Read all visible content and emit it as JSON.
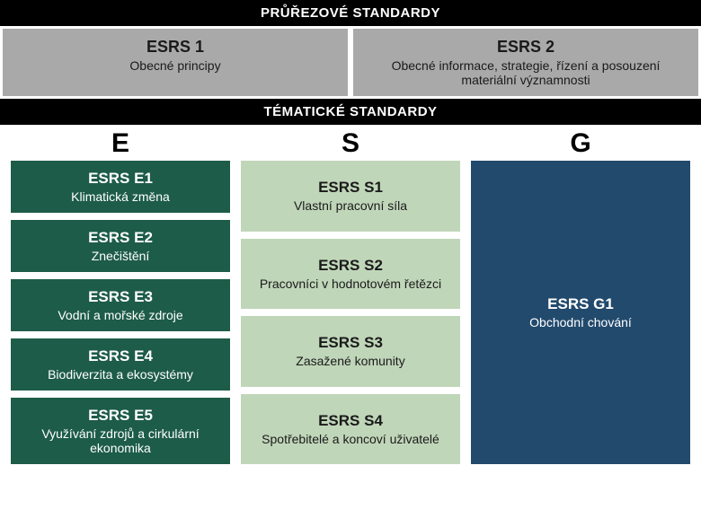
{
  "colors": {
    "band_bg": "#000000",
    "cross_bg": "#a9a9a9",
    "cross_text": "#1a1a1a",
    "e_bg": "#1d5c48",
    "s_bg": "#c0d6b9",
    "s_text": "#1a1a1a",
    "g_bg": "#224a6d"
  },
  "bands": {
    "cross": "PRŮŘEZOVÉ STANDARDY",
    "thematic": "TÉMATICKÉ STANDARDY"
  },
  "cross": [
    {
      "title": "ESRS 1",
      "sub": "Obecné principy"
    },
    {
      "title": "ESRS 2",
      "sub": "Obecné informace, strategie, řízení a posouzení materiální významnosti"
    }
  ],
  "headers": {
    "e": "E",
    "s": "S",
    "g": "G"
  },
  "e": [
    {
      "title": "ESRS E1",
      "sub": "Klimatická změna"
    },
    {
      "title": "ESRS E2",
      "sub": "Znečištění"
    },
    {
      "title": "ESRS E3",
      "sub": "Vodní a mořské zdroje"
    },
    {
      "title": "ESRS E4",
      "sub": "Biodiverzita a ekosystémy"
    },
    {
      "title": "ESRS E5",
      "sub": "Využívání zdrojů a cirkulární ekonomika"
    }
  ],
  "s": [
    {
      "title": "ESRS S1",
      "sub": "Vlastní pracovní síla"
    },
    {
      "title": "ESRS S2",
      "sub": "Pracovníci v hodnotovém řetězci"
    },
    {
      "title": "ESRS S3",
      "sub": "Zasažené komunity"
    },
    {
      "title": "ESRS S4",
      "sub": "Spotřebitelé a koncoví uživatelé"
    }
  ],
  "g": [
    {
      "title": "ESRS G1",
      "sub": "Obchodní chování"
    }
  ]
}
